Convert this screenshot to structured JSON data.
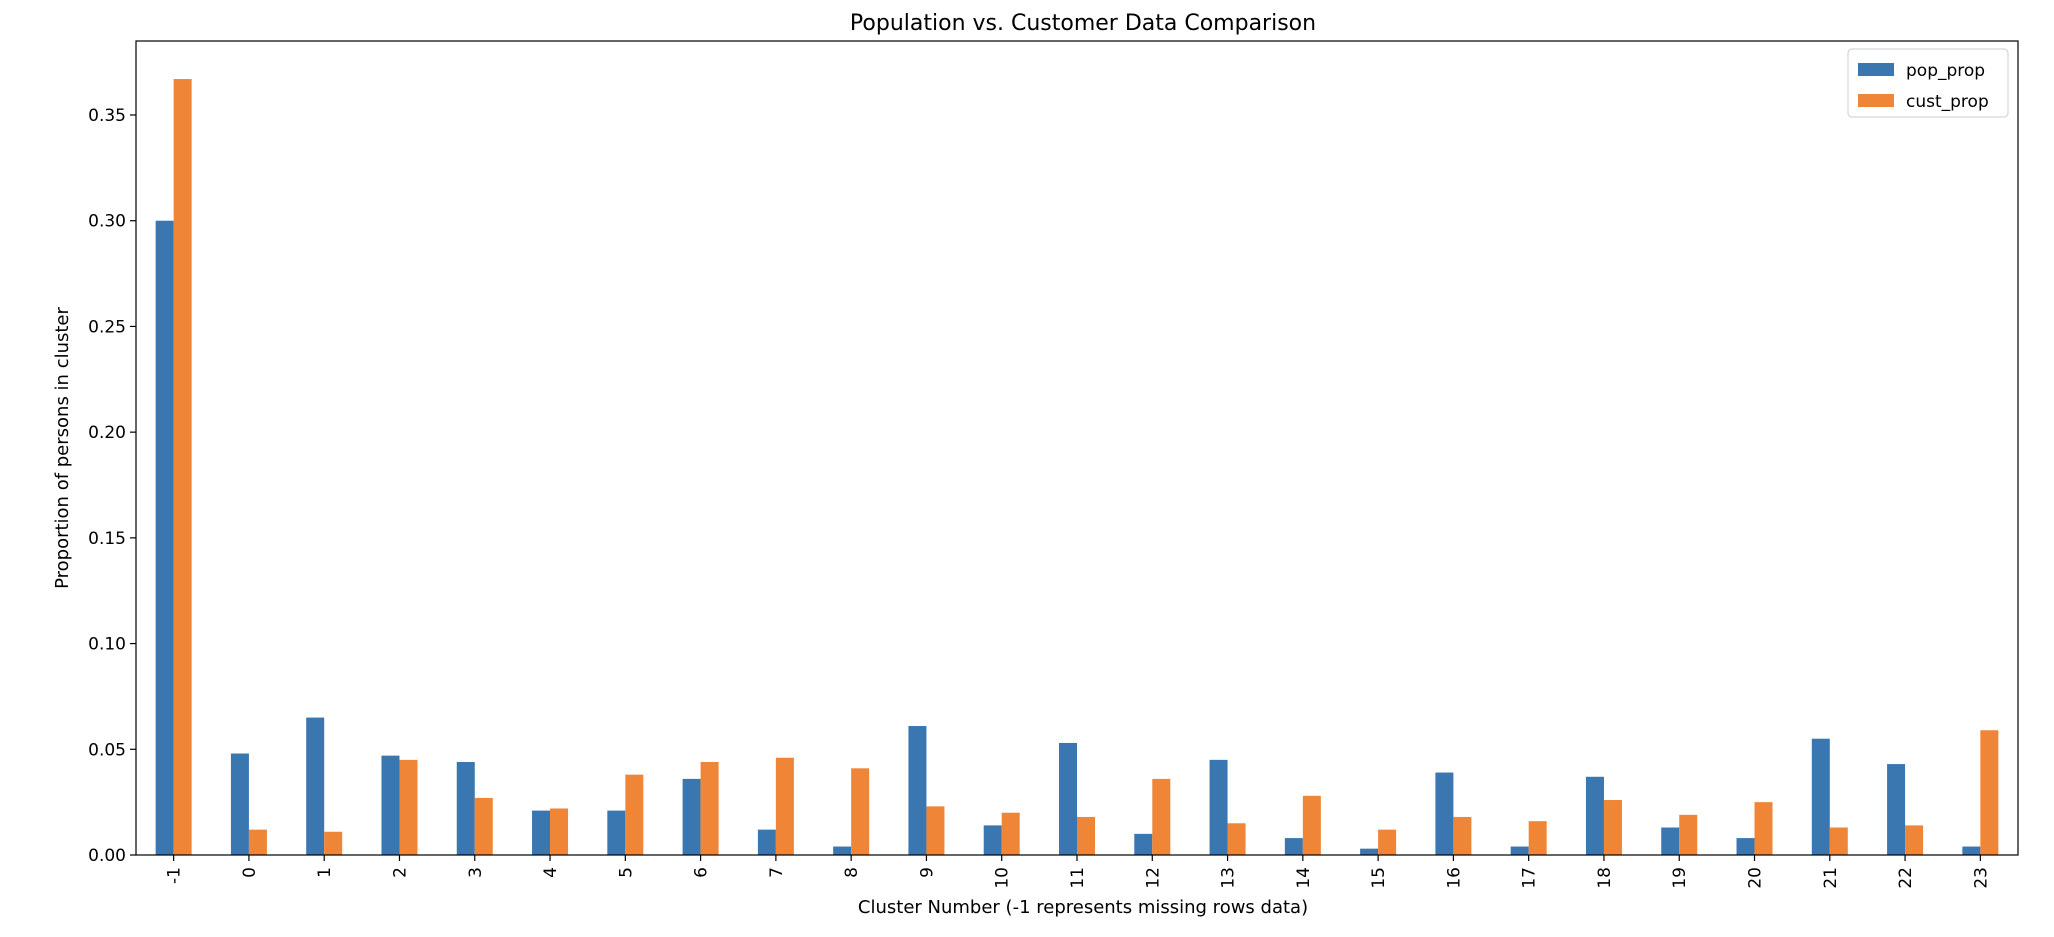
{
  "chart_data": {
    "type": "bar",
    "title": "Population vs. Customer Data Comparison",
    "xlabel": "Cluster Number (-1 represents missing rows data)",
    "ylabel": "Proportion of persons in cluster",
    "categories": [
      "-1",
      "0",
      "1",
      "2",
      "3",
      "4",
      "5",
      "6",
      "7",
      "8",
      "9",
      "10",
      "11",
      "12",
      "13",
      "14",
      "15",
      "16",
      "17",
      "18",
      "19",
      "20",
      "21",
      "22",
      "23"
    ],
    "series": [
      {
        "name": "pop_prop",
        "color": "#3a76af",
        "values": [
          0.3,
          0.048,
          0.065,
          0.047,
          0.044,
          0.021,
          0.021,
          0.036,
          0.012,
          0.004,
          0.061,
          0.014,
          0.053,
          0.01,
          0.045,
          0.008,
          0.003,
          0.039,
          0.004,
          0.037,
          0.013,
          0.008,
          0.055,
          0.043,
          0.004
        ]
      },
      {
        "name": "cust_prop",
        "color": "#ef8536",
        "values": [
          0.367,
          0.012,
          0.011,
          0.045,
          0.027,
          0.022,
          0.038,
          0.044,
          0.046,
          0.041,
          0.023,
          0.02,
          0.018,
          0.036,
          0.015,
          0.028,
          0.012,
          0.018,
          0.016,
          0.026,
          0.019,
          0.025,
          0.013,
          0.014,
          0.059
        ]
      }
    ],
    "ylim": [
      0,
      0.385
    ],
    "yticks": [
      "0.00",
      "0.05",
      "0.10",
      "0.15",
      "0.20",
      "0.25",
      "0.30",
      "0.35"
    ],
    "grid": false,
    "legend_position": "top-right"
  }
}
